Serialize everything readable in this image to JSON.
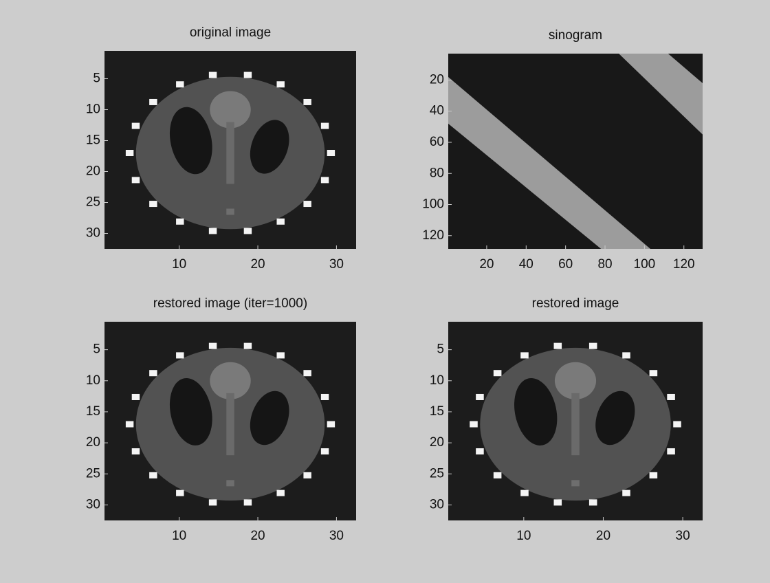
{
  "chart_data": [
    {
      "type": "image",
      "title": "original image",
      "xlim": [
        0.5,
        32.5
      ],
      "ylim": [
        0.5,
        32.5
      ],
      "y_reversed": true,
      "xticks": [
        10,
        20,
        30
      ],
      "yticks": [
        5,
        10,
        15,
        20,
        25,
        30
      ]
    },
    {
      "type": "sinogram",
      "title": "sinogram",
      "xlim": [
        0.5,
        129.5
      ],
      "ylim": [
        3,
        128.5
      ],
      "y_reversed": true,
      "xticks": [
        20,
        40,
        60,
        80,
        100,
        120
      ],
      "yticks": [
        20,
        40,
        60,
        80,
        100,
        120
      ]
    },
    {
      "type": "image",
      "title": "restored image (iter=1000)",
      "xlim": [
        0.5,
        32.5
      ],
      "ylim": [
        0.5,
        32.5
      ],
      "y_reversed": true,
      "xticks": [
        10,
        20,
        30
      ],
      "yticks": [
        5,
        10,
        15,
        20,
        25,
        30
      ]
    },
    {
      "type": "image",
      "title": "restored image",
      "xlim": [
        0.5,
        32.5
      ],
      "ylim": [
        0.5,
        32.5
      ],
      "y_reversed": true,
      "xticks": [
        10,
        20,
        30
      ],
      "yticks": [
        5,
        10,
        15,
        20,
        25,
        30
      ]
    }
  ]
}
